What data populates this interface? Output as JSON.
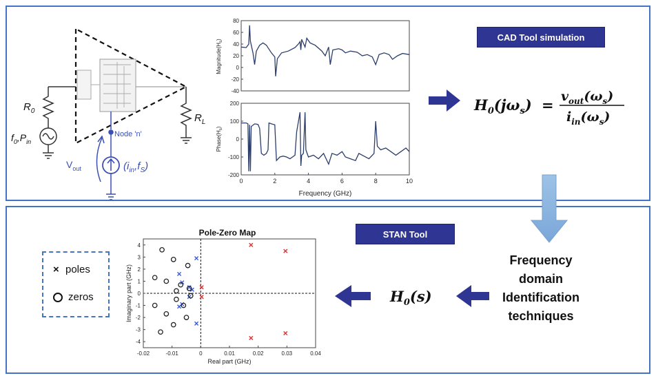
{
  "cad_label": "CAD Tool simulation",
  "stan_label": "STAN Tool",
  "circuit": {
    "r0": "R",
    "r0_sub": "0",
    "rl": "R",
    "rl_sub": "L",
    "source_f": "f",
    "source_f_sub": "0",
    "source_p": "P",
    "source_p_sub": "in",
    "node": "Node 'n'",
    "vout": "V",
    "vout_sub": "out",
    "isrc_open": "(i",
    "isrc_i_sub": "in",
    "isrc_f": "f",
    "isrc_f_sub": "S",
    "isrc_close": ")"
  },
  "equation": {
    "lhs_main": "H",
    "lhs_sub": "0",
    "lhs_arg": "(jω",
    "lhs_arg_sub": "s",
    "lhs_close": ")",
    "equals": "=",
    "num": "v",
    "num_sub": "out",
    "num_arg": "(ω",
    "num_arg_sub": "s",
    "num_close": ")",
    "den": "i",
    "den_sub": "in",
    "den_arg": "(ω",
    "den_arg_sub": "s",
    "den_close": ")"
  },
  "hs": {
    "main": "H",
    "sub": "0",
    "arg": "(s)"
  },
  "freq_text": [
    "Frequency",
    "domain",
    "Identification",
    "techniques"
  ],
  "legend": {
    "poles": "poles",
    "zeros": "zeros",
    "pole_symbol": "×"
  },
  "colors": {
    "accent": "#2e3592",
    "border": "#4472c4",
    "arrow_light": "#8eb4e3",
    "pole_red": "#e03030",
    "pole_blue": "#3a5bd9",
    "line": "#2b3d6b"
  },
  "mag_plot": {
    "ylabel": "Magnitude(H",
    "ylabel_sub": "s",
    "ylabel_close": ")",
    "ylim": [
      -40,
      80
    ],
    "yticks": [
      "80",
      "60",
      "40",
      "20",
      "0",
      "-20",
      "-40"
    ],
    "xlim": [
      0,
      10
    ],
    "series": [
      [
        0,
        35
      ],
      [
        0.3,
        34
      ],
      [
        0.45,
        40
      ],
      [
        0.5,
        72
      ],
      [
        0.55,
        45
      ],
      [
        0.7,
        25
      ],
      [
        0.8,
        5
      ],
      [
        0.9,
        28
      ],
      [
        1.1,
        38
      ],
      [
        1.3,
        42
      ],
      [
        1.5,
        38
      ],
      [
        1.8,
        25
      ],
      [
        2.0,
        18
      ],
      [
        2.05,
        -15
      ],
      [
        2.15,
        15
      ],
      [
        2.4,
        25
      ],
      [
        2.8,
        28
      ],
      [
        3.2,
        34
      ],
      [
        3.4,
        40
      ],
      [
        3.5,
        44
      ],
      [
        3.55,
        30
      ],
      [
        3.6,
        48
      ],
      [
        3.8,
        35
      ],
      [
        3.9,
        50
      ],
      [
        4.1,
        42
      ],
      [
        4.4,
        38
      ],
      [
        4.8,
        28
      ],
      [
        5.0,
        20
      ],
      [
        5.2,
        35
      ],
      [
        5.3,
        5
      ],
      [
        5.45,
        30
      ],
      [
        5.8,
        32
      ],
      [
        6.0,
        30
      ],
      [
        6.2,
        25
      ],
      [
        6.5,
        28
      ],
      [
        6.9,
        26
      ],
      [
        7.2,
        20
      ],
      [
        7.5,
        22
      ],
      [
        7.8,
        18
      ],
      [
        8.0,
        5
      ],
      [
        8.2,
        22
      ],
      [
        8.5,
        25
      ],
      [
        8.8,
        22
      ],
      [
        9.0,
        14
      ],
      [
        9.3,
        20
      ],
      [
        9.6,
        24
      ],
      [
        10,
        22
      ]
    ]
  },
  "phase_plot": {
    "ylabel": "Phase(H",
    "ylabel_sub": "s",
    "ylabel_close": ")",
    "ylim": [
      -200,
      200
    ],
    "yticks": [
      "200",
      "100",
      "0",
      "-100",
      "-200"
    ],
    "xlim": [
      0,
      10
    ],
    "xticks": [
      "0",
      "2",
      "4",
      "6",
      "8",
      "10"
    ],
    "xlabel": "Frequency (GHz)",
    "series": [
      [
        0,
        90
      ],
      [
        0.3,
        90
      ],
      [
        0.4,
        85
      ],
      [
        0.45,
        -180
      ],
      [
        0.5,
        80
      ],
      [
        0.55,
        -180
      ],
      [
        0.6,
        70
      ],
      [
        0.8,
        85
      ],
      [
        1.0,
        82
      ],
      [
        1.1,
        60
      ],
      [
        1.2,
        -80
      ],
      [
        1.35,
        -90
      ],
      [
        1.5,
        -80
      ],
      [
        1.6,
        -60
      ],
      [
        1.65,
        90
      ],
      [
        1.8,
        85
      ],
      [
        2.0,
        80
      ],
      [
        2.1,
        -120
      ],
      [
        2.3,
        -100
      ],
      [
        2.5,
        -95
      ],
      [
        2.7,
        -100
      ],
      [
        2.9,
        -110
      ],
      [
        3.2,
        -90
      ],
      [
        3.3,
        40
      ],
      [
        3.5,
        150
      ],
      [
        3.55,
        -150
      ],
      [
        3.6,
        -90
      ],
      [
        3.7,
        -80
      ],
      [
        3.8,
        150
      ],
      [
        3.85,
        -60
      ],
      [
        4.0,
        -100
      ],
      [
        4.3,
        -90
      ],
      [
        4.6,
        -110
      ],
      [
        4.9,
        -80
      ],
      [
        5.0,
        -100
      ],
      [
        5.2,
        -140
      ],
      [
        5.4,
        -80
      ],
      [
        5.7,
        -90
      ],
      [
        6.0,
        -70
      ],
      [
        6.2,
        -100
      ],
      [
        6.5,
        -110
      ],
      [
        6.8,
        -120
      ],
      [
        7.0,
        -80
      ],
      [
        7.3,
        -95
      ],
      [
        7.6,
        -110
      ],
      [
        7.9,
        -80
      ],
      [
        8.0,
        100
      ],
      [
        8.1,
        -40
      ],
      [
        8.3,
        -60
      ],
      [
        8.6,
        -50
      ],
      [
        8.9,
        -70
      ],
      [
        9.2,
        -90
      ],
      [
        9.5,
        -70
      ],
      [
        9.8,
        -50
      ],
      [
        10,
        -70
      ]
    ]
  },
  "chart_data": {
    "type": "scatter",
    "title": "Pole-Zero Map",
    "xlabel": "Real part (GHz)",
    "ylabel": "Imaginary part (GHz)",
    "xlim": [
      -0.02,
      0.04
    ],
    "ylim": [
      -4.5,
      4.5
    ],
    "xticks": [
      "-0.02",
      "-0.01",
      "0",
      "0.01",
      "0.02",
      "0.03",
      "0.04"
    ],
    "yticks": [
      "4",
      "3",
      "2",
      "1",
      "0",
      "-1",
      "-2",
      "-3",
      "-4"
    ],
    "series": [
      {
        "name": "poles",
        "marker": "x",
        "color": "#e03030",
        "points": [
          [
            0.0175,
            4.0
          ],
          [
            0.0295,
            3.5
          ],
          [
            0.0175,
            -3.7
          ],
          [
            0.0295,
            -3.3
          ],
          [
            0.0003,
            0.5
          ],
          [
            0.0003,
            -0.3
          ]
        ]
      },
      {
        "name": "poles",
        "marker": "x",
        "color": "#3a5bd9",
        "points": [
          [
            -0.0015,
            2.9
          ],
          [
            -0.0075,
            1.6
          ],
          [
            -0.0065,
            0.9
          ],
          [
            -0.004,
            0.5
          ],
          [
            -0.003,
            0.3
          ],
          [
            -0.004,
            -0.3
          ],
          [
            -0.0065,
            -0.9
          ],
          [
            -0.0075,
            -1.1
          ],
          [
            -0.0015,
            -2.5
          ]
        ]
      },
      {
        "name": "zeros",
        "marker": "o",
        "color": "#222222",
        "points": [
          [
            -0.0135,
            3.6
          ],
          [
            -0.0095,
            2.8
          ],
          [
            -0.0045,
            2.3
          ],
          [
            -0.016,
            1.3
          ],
          [
            -0.012,
            1.0
          ],
          [
            -0.007,
            0.7
          ],
          [
            -0.004,
            0.4
          ],
          [
            -0.0085,
            0.2
          ],
          [
            -0.0035,
            -0.2
          ],
          [
            -0.0085,
            -0.5
          ],
          [
            -0.016,
            -1.0
          ],
          [
            -0.006,
            -1.0
          ],
          [
            -0.012,
            -1.7
          ],
          [
            -0.005,
            -2.0
          ],
          [
            -0.0095,
            -2.6
          ],
          [
            -0.014,
            -3.2
          ]
        ]
      }
    ]
  }
}
